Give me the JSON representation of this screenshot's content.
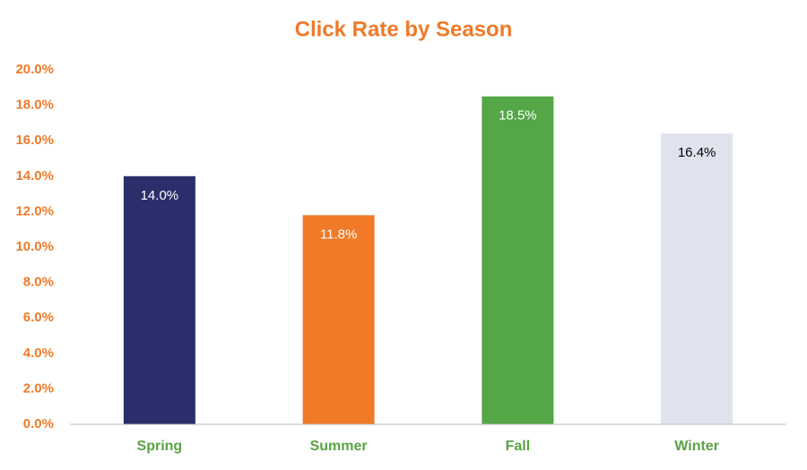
{
  "chart_data": {
    "type": "bar",
    "title": "Click Rate by Season",
    "categories": [
      "Spring",
      "Summer",
      "Fall",
      "Winter"
    ],
    "values": [
      14.0,
      11.8,
      18.5,
      16.4
    ],
    "value_labels": [
      "14.0%",
      "11.8%",
      "18.5%",
      "16.4%"
    ],
    "colors": [
      "#2a2f6b",
      "#f07a28",
      "#54a647",
      "#e0e3ee"
    ],
    "value_label_colors": [
      "#ffffff",
      "#ffffff",
      "#ffffff",
      "#000000"
    ],
    "ylim": [
      0,
      20
    ],
    "yticks": [
      {
        "value": 0,
        "label": "0.0%"
      },
      {
        "value": 2,
        "label": "2.0%"
      },
      {
        "value": 4,
        "label": "4.0%"
      },
      {
        "value": 6,
        "label": "6.0%"
      },
      {
        "value": 8,
        "label": "8.0%"
      },
      {
        "value": 10,
        "label": "10.0%"
      },
      {
        "value": 12,
        "label": "12.0%"
      },
      {
        "value": 14,
        "label": "14.0%"
      },
      {
        "value": 16,
        "label": "16.0%"
      },
      {
        "value": 18,
        "label": "18.0%"
      },
      {
        "value": 20,
        "label": "20.0%"
      }
    ],
    "grid": false
  }
}
